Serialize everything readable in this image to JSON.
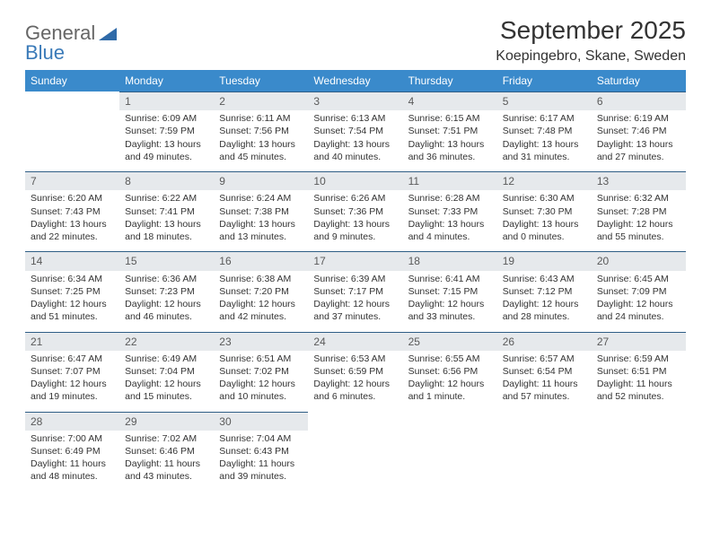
{
  "brand": {
    "part1": "General",
    "part2": "Blue"
  },
  "title": "September 2025",
  "location": "Koepingebro, Skane, Sweden",
  "colors": {
    "header_bg": "#3a8acb",
    "header_text": "#ffffff",
    "daynum_bg": "#e6e9ec",
    "daynum_border": "#2f5e86",
    "text": "#333333",
    "logo_blue": "#3a7ab8"
  },
  "weekdays": [
    "Sunday",
    "Monday",
    "Tuesday",
    "Wednesday",
    "Thursday",
    "Friday",
    "Saturday"
  ],
  "weeks": [
    [
      null,
      {
        "n": "1",
        "sunrise": "Sunrise: 6:09 AM",
        "sunset": "Sunset: 7:59 PM",
        "day": "Daylight: 13 hours and 49 minutes."
      },
      {
        "n": "2",
        "sunrise": "Sunrise: 6:11 AM",
        "sunset": "Sunset: 7:56 PM",
        "day": "Daylight: 13 hours and 45 minutes."
      },
      {
        "n": "3",
        "sunrise": "Sunrise: 6:13 AM",
        "sunset": "Sunset: 7:54 PM",
        "day": "Daylight: 13 hours and 40 minutes."
      },
      {
        "n": "4",
        "sunrise": "Sunrise: 6:15 AM",
        "sunset": "Sunset: 7:51 PM",
        "day": "Daylight: 13 hours and 36 minutes."
      },
      {
        "n": "5",
        "sunrise": "Sunrise: 6:17 AM",
        "sunset": "Sunset: 7:48 PM",
        "day": "Daylight: 13 hours and 31 minutes."
      },
      {
        "n": "6",
        "sunrise": "Sunrise: 6:19 AM",
        "sunset": "Sunset: 7:46 PM",
        "day": "Daylight: 13 hours and 27 minutes."
      }
    ],
    [
      {
        "n": "7",
        "sunrise": "Sunrise: 6:20 AM",
        "sunset": "Sunset: 7:43 PM",
        "day": "Daylight: 13 hours and 22 minutes."
      },
      {
        "n": "8",
        "sunrise": "Sunrise: 6:22 AM",
        "sunset": "Sunset: 7:41 PM",
        "day": "Daylight: 13 hours and 18 minutes."
      },
      {
        "n": "9",
        "sunrise": "Sunrise: 6:24 AM",
        "sunset": "Sunset: 7:38 PM",
        "day": "Daylight: 13 hours and 13 minutes."
      },
      {
        "n": "10",
        "sunrise": "Sunrise: 6:26 AM",
        "sunset": "Sunset: 7:36 PM",
        "day": "Daylight: 13 hours and 9 minutes."
      },
      {
        "n": "11",
        "sunrise": "Sunrise: 6:28 AM",
        "sunset": "Sunset: 7:33 PM",
        "day": "Daylight: 13 hours and 4 minutes."
      },
      {
        "n": "12",
        "sunrise": "Sunrise: 6:30 AM",
        "sunset": "Sunset: 7:30 PM",
        "day": "Daylight: 13 hours and 0 minutes."
      },
      {
        "n": "13",
        "sunrise": "Sunrise: 6:32 AM",
        "sunset": "Sunset: 7:28 PM",
        "day": "Daylight: 12 hours and 55 minutes."
      }
    ],
    [
      {
        "n": "14",
        "sunrise": "Sunrise: 6:34 AM",
        "sunset": "Sunset: 7:25 PM",
        "day": "Daylight: 12 hours and 51 minutes."
      },
      {
        "n": "15",
        "sunrise": "Sunrise: 6:36 AM",
        "sunset": "Sunset: 7:23 PM",
        "day": "Daylight: 12 hours and 46 minutes."
      },
      {
        "n": "16",
        "sunrise": "Sunrise: 6:38 AM",
        "sunset": "Sunset: 7:20 PM",
        "day": "Daylight: 12 hours and 42 minutes."
      },
      {
        "n": "17",
        "sunrise": "Sunrise: 6:39 AM",
        "sunset": "Sunset: 7:17 PM",
        "day": "Daylight: 12 hours and 37 minutes."
      },
      {
        "n": "18",
        "sunrise": "Sunrise: 6:41 AM",
        "sunset": "Sunset: 7:15 PM",
        "day": "Daylight: 12 hours and 33 minutes."
      },
      {
        "n": "19",
        "sunrise": "Sunrise: 6:43 AM",
        "sunset": "Sunset: 7:12 PM",
        "day": "Daylight: 12 hours and 28 minutes."
      },
      {
        "n": "20",
        "sunrise": "Sunrise: 6:45 AM",
        "sunset": "Sunset: 7:09 PM",
        "day": "Daylight: 12 hours and 24 minutes."
      }
    ],
    [
      {
        "n": "21",
        "sunrise": "Sunrise: 6:47 AM",
        "sunset": "Sunset: 7:07 PM",
        "day": "Daylight: 12 hours and 19 minutes."
      },
      {
        "n": "22",
        "sunrise": "Sunrise: 6:49 AM",
        "sunset": "Sunset: 7:04 PM",
        "day": "Daylight: 12 hours and 15 minutes."
      },
      {
        "n": "23",
        "sunrise": "Sunrise: 6:51 AM",
        "sunset": "Sunset: 7:02 PM",
        "day": "Daylight: 12 hours and 10 minutes."
      },
      {
        "n": "24",
        "sunrise": "Sunrise: 6:53 AM",
        "sunset": "Sunset: 6:59 PM",
        "day": "Daylight: 12 hours and 6 minutes."
      },
      {
        "n": "25",
        "sunrise": "Sunrise: 6:55 AM",
        "sunset": "Sunset: 6:56 PM",
        "day": "Daylight: 12 hours and 1 minute."
      },
      {
        "n": "26",
        "sunrise": "Sunrise: 6:57 AM",
        "sunset": "Sunset: 6:54 PM",
        "day": "Daylight: 11 hours and 57 minutes."
      },
      {
        "n": "27",
        "sunrise": "Sunrise: 6:59 AM",
        "sunset": "Sunset: 6:51 PM",
        "day": "Daylight: 11 hours and 52 minutes."
      }
    ],
    [
      {
        "n": "28",
        "sunrise": "Sunrise: 7:00 AM",
        "sunset": "Sunset: 6:49 PM",
        "day": "Daylight: 11 hours and 48 minutes."
      },
      {
        "n": "29",
        "sunrise": "Sunrise: 7:02 AM",
        "sunset": "Sunset: 6:46 PM",
        "day": "Daylight: 11 hours and 43 minutes."
      },
      {
        "n": "30",
        "sunrise": "Sunrise: 7:04 AM",
        "sunset": "Sunset: 6:43 PM",
        "day": "Daylight: 11 hours and 39 minutes."
      },
      null,
      null,
      null,
      null
    ]
  ]
}
